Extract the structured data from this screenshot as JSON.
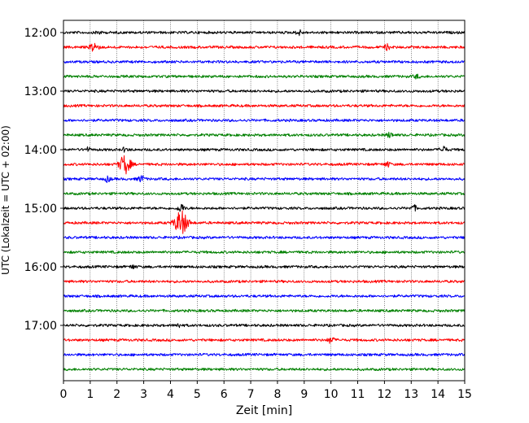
{
  "chart_data": {
    "type": "line",
    "title": "",
    "xlabel": "Zeit  [min]",
    "ylabel": "UTC (Lokalzeit = UTC + 02:00)",
    "xlim": [
      0,
      15
    ],
    "x_ticks": [
      "0",
      "1",
      "2",
      "3",
      "4",
      "5",
      "6",
      "7",
      "8",
      "9",
      "10",
      "11",
      "12",
      "13",
      "14",
      "15"
    ],
    "y_ticks": [
      "12:00",
      "13:00",
      "14:00",
      "15:00",
      "16:00",
      "17:00"
    ],
    "grid_x": "dotted",
    "legend": "none",
    "trace_interval_min": 15,
    "trace_colors": [
      "#000000",
      "#ff0000",
      "#0000ff",
      "#008000"
    ],
    "traces": [
      {
        "start": "12:00",
        "color": "#000000"
      },
      {
        "start": "12:15",
        "color": "#ff0000"
      },
      {
        "start": "12:30",
        "color": "#0000ff"
      },
      {
        "start": "12:45",
        "color": "#008000"
      },
      {
        "start": "13:00",
        "color": "#000000"
      },
      {
        "start": "13:15",
        "color": "#ff0000"
      },
      {
        "start": "13:30",
        "color": "#0000ff"
      },
      {
        "start": "13:45",
        "color": "#008000"
      },
      {
        "start": "14:00",
        "color": "#000000"
      },
      {
        "start": "14:15",
        "color": "#ff0000"
      },
      {
        "start": "14:30",
        "color": "#0000ff"
      },
      {
        "start": "14:45",
        "color": "#008000"
      },
      {
        "start": "15:00",
        "color": "#000000"
      },
      {
        "start": "15:15",
        "color": "#ff0000"
      },
      {
        "start": "15:30",
        "color": "#0000ff"
      },
      {
        "start": "15:45",
        "color": "#008000"
      },
      {
        "start": "16:00",
        "color": "#000000"
      },
      {
        "start": "16:15",
        "color": "#ff0000"
      },
      {
        "start": "16:30",
        "color": "#0000ff"
      },
      {
        "start": "16:45",
        "color": "#008000"
      },
      {
        "start": "17:00",
        "color": "#000000"
      },
      {
        "start": "17:15",
        "color": "#ff0000"
      },
      {
        "start": "17:30",
        "color": "#0000ff"
      },
      {
        "start": "17:45",
        "color": "#008000"
      }
    ],
    "events": [
      {
        "trace": "12:00",
        "minute": 1.3,
        "strength": 1.5
      },
      {
        "trace": "12:00",
        "minute": 8.8,
        "strength": 2
      },
      {
        "trace": "12:15",
        "minute": 1.15,
        "strength": 4
      },
      {
        "trace": "12:15",
        "minute": 12.1,
        "strength": 2
      },
      {
        "trace": "12:45",
        "minute": 13.2,
        "strength": 1.5
      },
      {
        "trace": "13:45",
        "minute": 12.2,
        "strength": 2
      },
      {
        "trace": "14:00",
        "minute": 0.9,
        "strength": 1.5
      },
      {
        "trace": "14:00",
        "minute": 2.3,
        "strength": 1.5
      },
      {
        "trace": "14:00",
        "minute": 14.2,
        "strength": 2.5
      },
      {
        "trace": "14:15",
        "minute": 2.3,
        "strength": 7
      },
      {
        "trace": "14:15",
        "minute": 12.1,
        "strength": 2
      },
      {
        "trace": "14:30",
        "minute": 1.65,
        "strength": 2
      },
      {
        "trace": "14:30",
        "minute": 2.9,
        "strength": 2.5
      },
      {
        "trace": "15:00",
        "minute": 4.4,
        "strength": 3
      },
      {
        "trace": "15:00",
        "minute": 13.1,
        "strength": 2
      },
      {
        "trace": "15:15",
        "minute": 4.4,
        "strength": 9
      },
      {
        "trace": "16:00",
        "minute": 2.6,
        "strength": 1.5
      },
      {
        "trace": "17:00",
        "minute": 4.3,
        "strength": 1.5
      },
      {
        "trace": "17:15",
        "minute": 10.0,
        "strength": 2.5
      }
    ]
  }
}
